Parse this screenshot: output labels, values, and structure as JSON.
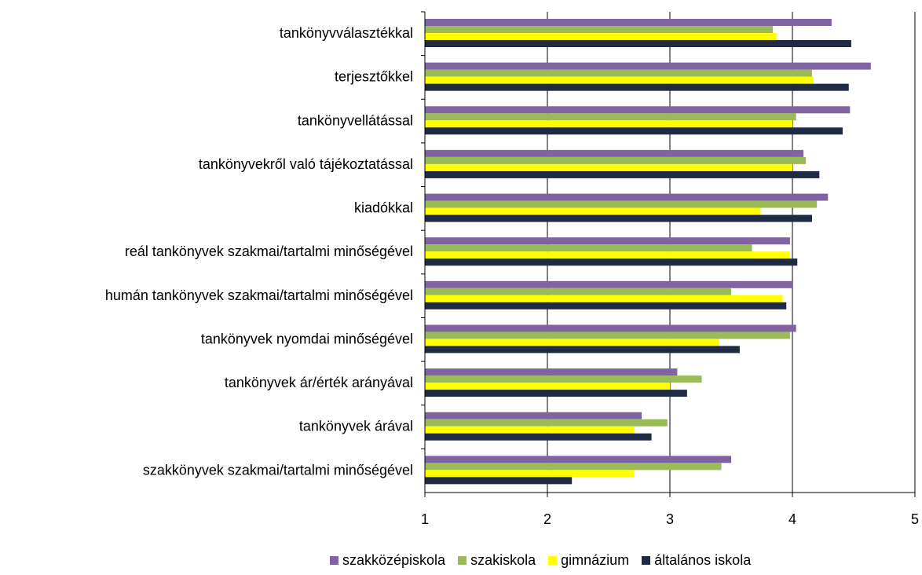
{
  "chart_data": {
    "type": "bar",
    "orientation": "horizontal",
    "categories": [
      "tankönyvválasztékkal",
      "terjesztőkkel",
      "tankönyvellátással",
      "tankönyvekről való tájékoztatással",
      "kiadókkal",
      "reál tankönyvek szakmai/tartalmi minőségével",
      "humán tankönyvek szakmai/tartalmi minőségével",
      "tankönyvek nyomdai minőségével",
      "tankönyvek ár/érték arányával",
      "tankönyvek árával",
      "szakkönyvek szakmai/tartalmi minőségével"
    ],
    "series": [
      {
        "name": "szakközépiskola",
        "color": "#8064A2",
        "values": [
          4.32,
          4.64,
          4.47,
          4.09,
          4.29,
          3.98,
          4.0,
          4.03,
          3.06,
          2.77,
          3.5
        ]
      },
      {
        "name": "szakiskola",
        "color": "#9BBB59",
        "values": [
          3.84,
          4.16,
          4.03,
          4.11,
          4.2,
          3.67,
          3.5,
          3.98,
          3.26,
          2.98,
          3.42
        ]
      },
      {
        "name": "gimnázium",
        "color": "#FFFF00",
        "values": [
          3.87,
          4.17,
          4.0,
          4.0,
          3.74,
          3.98,
          3.92,
          3.4,
          3.0,
          2.71,
          2.71
        ]
      },
      {
        "name": "általános iskola",
        "color": "#1F2A44",
        "values": [
          4.48,
          4.46,
          4.41,
          4.22,
          4.16,
          4.04,
          3.95,
          3.57,
          3.14,
          2.85,
          2.2
        ]
      }
    ],
    "xlim": [
      1,
      5
    ],
    "xticks": [
      "1",
      "2",
      "3",
      "4",
      "5"
    ],
    "grid": "vertical",
    "legend": "bottom",
    "title": "",
    "xlabel": "",
    "ylabel": ""
  }
}
